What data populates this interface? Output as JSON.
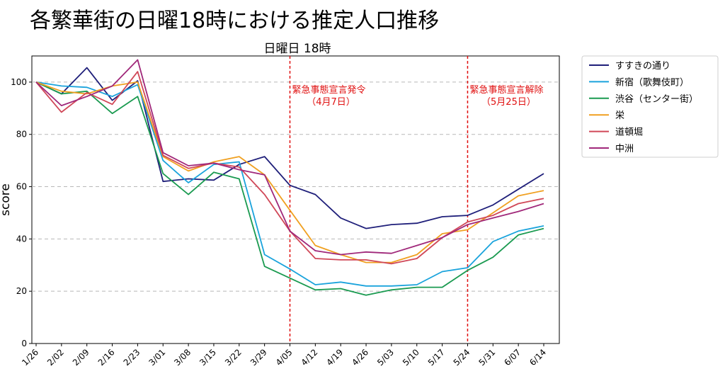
{
  "page_title": "各繁華街の日曜18時における推定人口推移",
  "chart_data": {
    "type": "line",
    "title": "日曜日 18時",
    "xlabel": "",
    "ylabel": "score",
    "ylim": [
      0,
      110
    ],
    "yticks": [
      0,
      20,
      40,
      60,
      80,
      100
    ],
    "grid": "horizontal-dashed",
    "legend_position": "outside-right",
    "categories": [
      "1/26",
      "2/02",
      "2/09",
      "2/16",
      "2/23",
      "3/01",
      "3/08",
      "3/15",
      "3/22",
      "3/29",
      "4/05",
      "4/12",
      "4/19",
      "4/26",
      "5/03",
      "5/10",
      "5/17",
      "5/24",
      "5/31",
      "6/07",
      "6/14"
    ],
    "series": [
      {
        "name": "すすきの通り",
        "color": "#1f1f7a",
        "values": [
          100,
          95.5,
          105.5,
          93,
          100.5,
          62,
          63,
          62.5,
          68.5,
          71.5,
          60.5,
          57,
          48,
          44,
          45.5,
          46,
          48.5,
          49,
          53,
          59,
          65
        ]
      },
      {
        "name": "新宿（歌舞伎町）",
        "color": "#1aa3dc",
        "values": [
          100,
          98.5,
          98,
          94.5,
          99,
          70,
          61.5,
          68.5,
          69.5,
          34,
          28.5,
          22.5,
          23.5,
          22,
          22,
          22.5,
          27.5,
          29,
          39,
          43,
          45
        ]
      },
      {
        "name": "渋谷（センター街）",
        "color": "#1a9a50",
        "values": [
          100,
          95.5,
          96.5,
          88,
          94.5,
          65,
          57,
          65.5,
          63,
          29.5,
          25,
          20.5,
          21,
          18.5,
          20.5,
          21.5,
          21.5,
          28,
          33,
          41.5,
          44
        ]
      },
      {
        "name": "栄",
        "color": "#f0a020",
        "values": [
          100,
          96.5,
          95.5,
          98.5,
          100,
          71.5,
          66,
          69.5,
          71.5,
          64.5,
          51,
          37.5,
          34,
          31,
          31,
          34,
          42,
          43.5,
          50,
          56.5,
          58.5
        ]
      },
      {
        "name": "道頓堀",
        "color": "#d04858",
        "values": [
          100,
          88.5,
          96,
          91.5,
          104,
          72,
          67,
          69,
          67.5,
          57,
          43,
          32.5,
          32,
          32,
          30.5,
          32.5,
          40.5,
          46.5,
          49,
          53.5,
          55.5
        ]
      },
      {
        "name": "中洲",
        "color": "#a0287a",
        "values": [
          100,
          91,
          94.5,
          98.5,
          108.5,
          73,
          68,
          69,
          66.5,
          64.5,
          43,
          35.5,
          34,
          35,
          34.5,
          37.5,
          40.5,
          45.5,
          48,
          50.5,
          53.5
        ]
      }
    ],
    "annotations": [
      {
        "x": "4/05",
        "label_line1": "緊急事態宣言発令",
        "label_line2": "（4月7日）"
      },
      {
        "x": "5/24",
        "label_line1": "緊急事態宣言解除",
        "label_line2": "（5月25日）"
      }
    ]
  }
}
